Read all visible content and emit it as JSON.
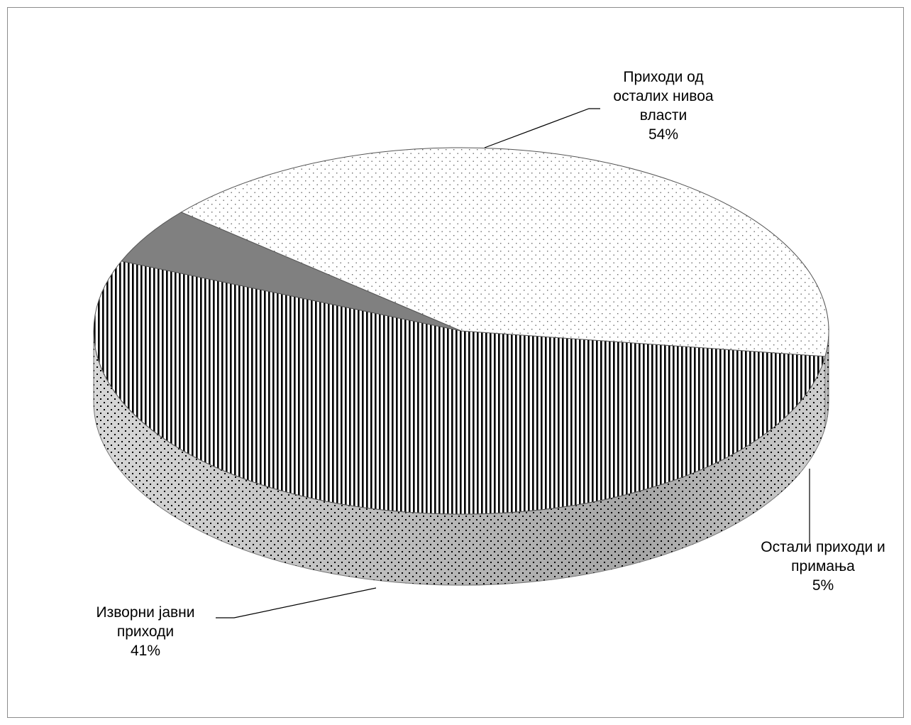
{
  "chart_data": {
    "type": "pie",
    "style": "3d",
    "slices": [
      {
        "label_lines": [
          "Приходи од",
          "осталих нивоа",
          "власти"
        ],
        "value": 54,
        "value_label": "54%",
        "pattern": "vertical-stripes",
        "color": "#000000"
      },
      {
        "label_lines": [
          "Остали приходи и",
          "примања"
        ],
        "value": 5,
        "value_label": "5%",
        "pattern": "solid",
        "color": "#808080"
      },
      {
        "label_lines": [
          "Изворни јавни",
          "приходи"
        ],
        "value": 41,
        "value_label": "41%",
        "pattern": "dots",
        "color": "#000000"
      }
    ],
    "legend": "none",
    "grid": false
  }
}
